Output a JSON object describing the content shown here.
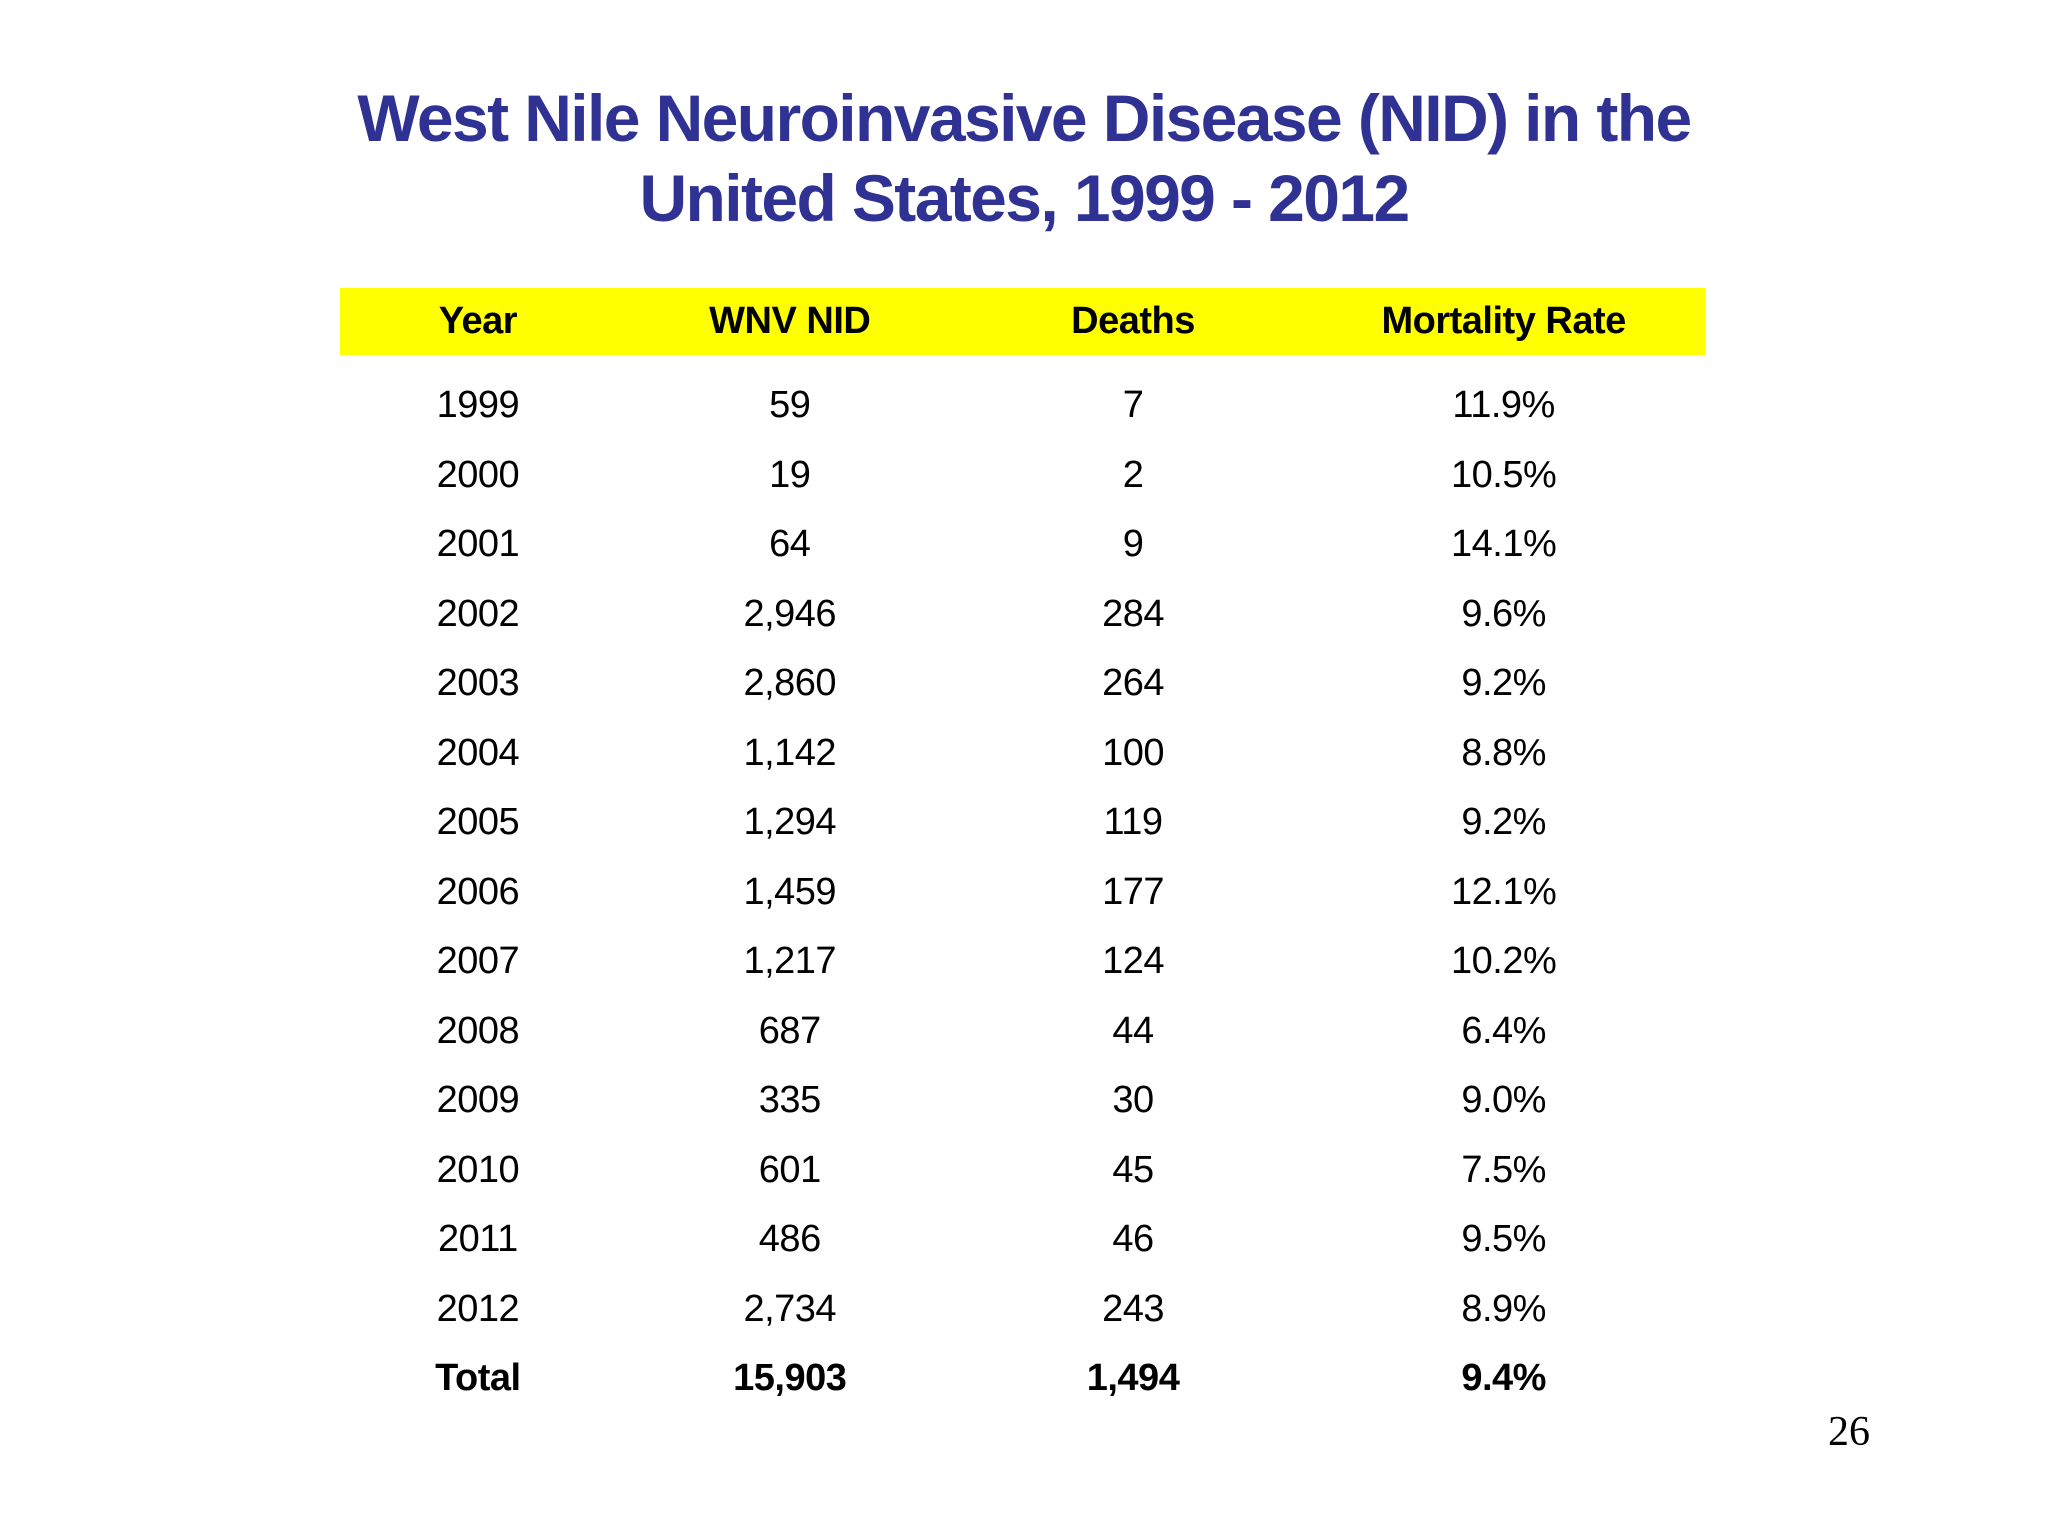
{
  "slide": {
    "title_line1": "West Nile Neuroinvasive Disease (NID) in the",
    "title_line2": "United States, 1999 - 2012",
    "page_number": "26",
    "colors": {
      "title_text": "#2F3193",
      "header_background": "#FFFF00",
      "body_text": "#000000",
      "slide_background": "#FFFFFF"
    }
  },
  "table": {
    "columns": [
      "Year",
      "WNV NID",
      "Deaths",
      "Mortality Rate"
    ],
    "rows": [
      [
        "1999",
        "59",
        "7",
        "11.9%"
      ],
      [
        "2000",
        "19",
        "2",
        "10.5%"
      ],
      [
        "2001",
        "64",
        "9",
        "14.1%"
      ],
      [
        "2002",
        "2,946",
        "284",
        "9.6%"
      ],
      [
        "2003",
        "2,860",
        "264",
        "9.2%"
      ],
      [
        "2004",
        "1,142",
        "100",
        "8.8%"
      ],
      [
        "2005",
        "1,294",
        "119",
        "9.2%"
      ],
      [
        "2006",
        "1,459",
        "177",
        "12.1%"
      ],
      [
        "2007",
        "1,217",
        "124",
        "10.2%"
      ],
      [
        "2008",
        "687",
        "44",
        "6.4%"
      ],
      [
        "2009",
        "335",
        "30",
        "9.0%"
      ],
      [
        "2010",
        "601",
        "45",
        "7.5%"
      ],
      [
        "2011",
        "486",
        "46",
        "9.5%"
      ],
      [
        "2012",
        "2,734",
        "243",
        "8.9%"
      ]
    ],
    "total_row": [
      "Total",
      "15,903",
      "1,494",
      "9.4%"
    ]
  }
}
